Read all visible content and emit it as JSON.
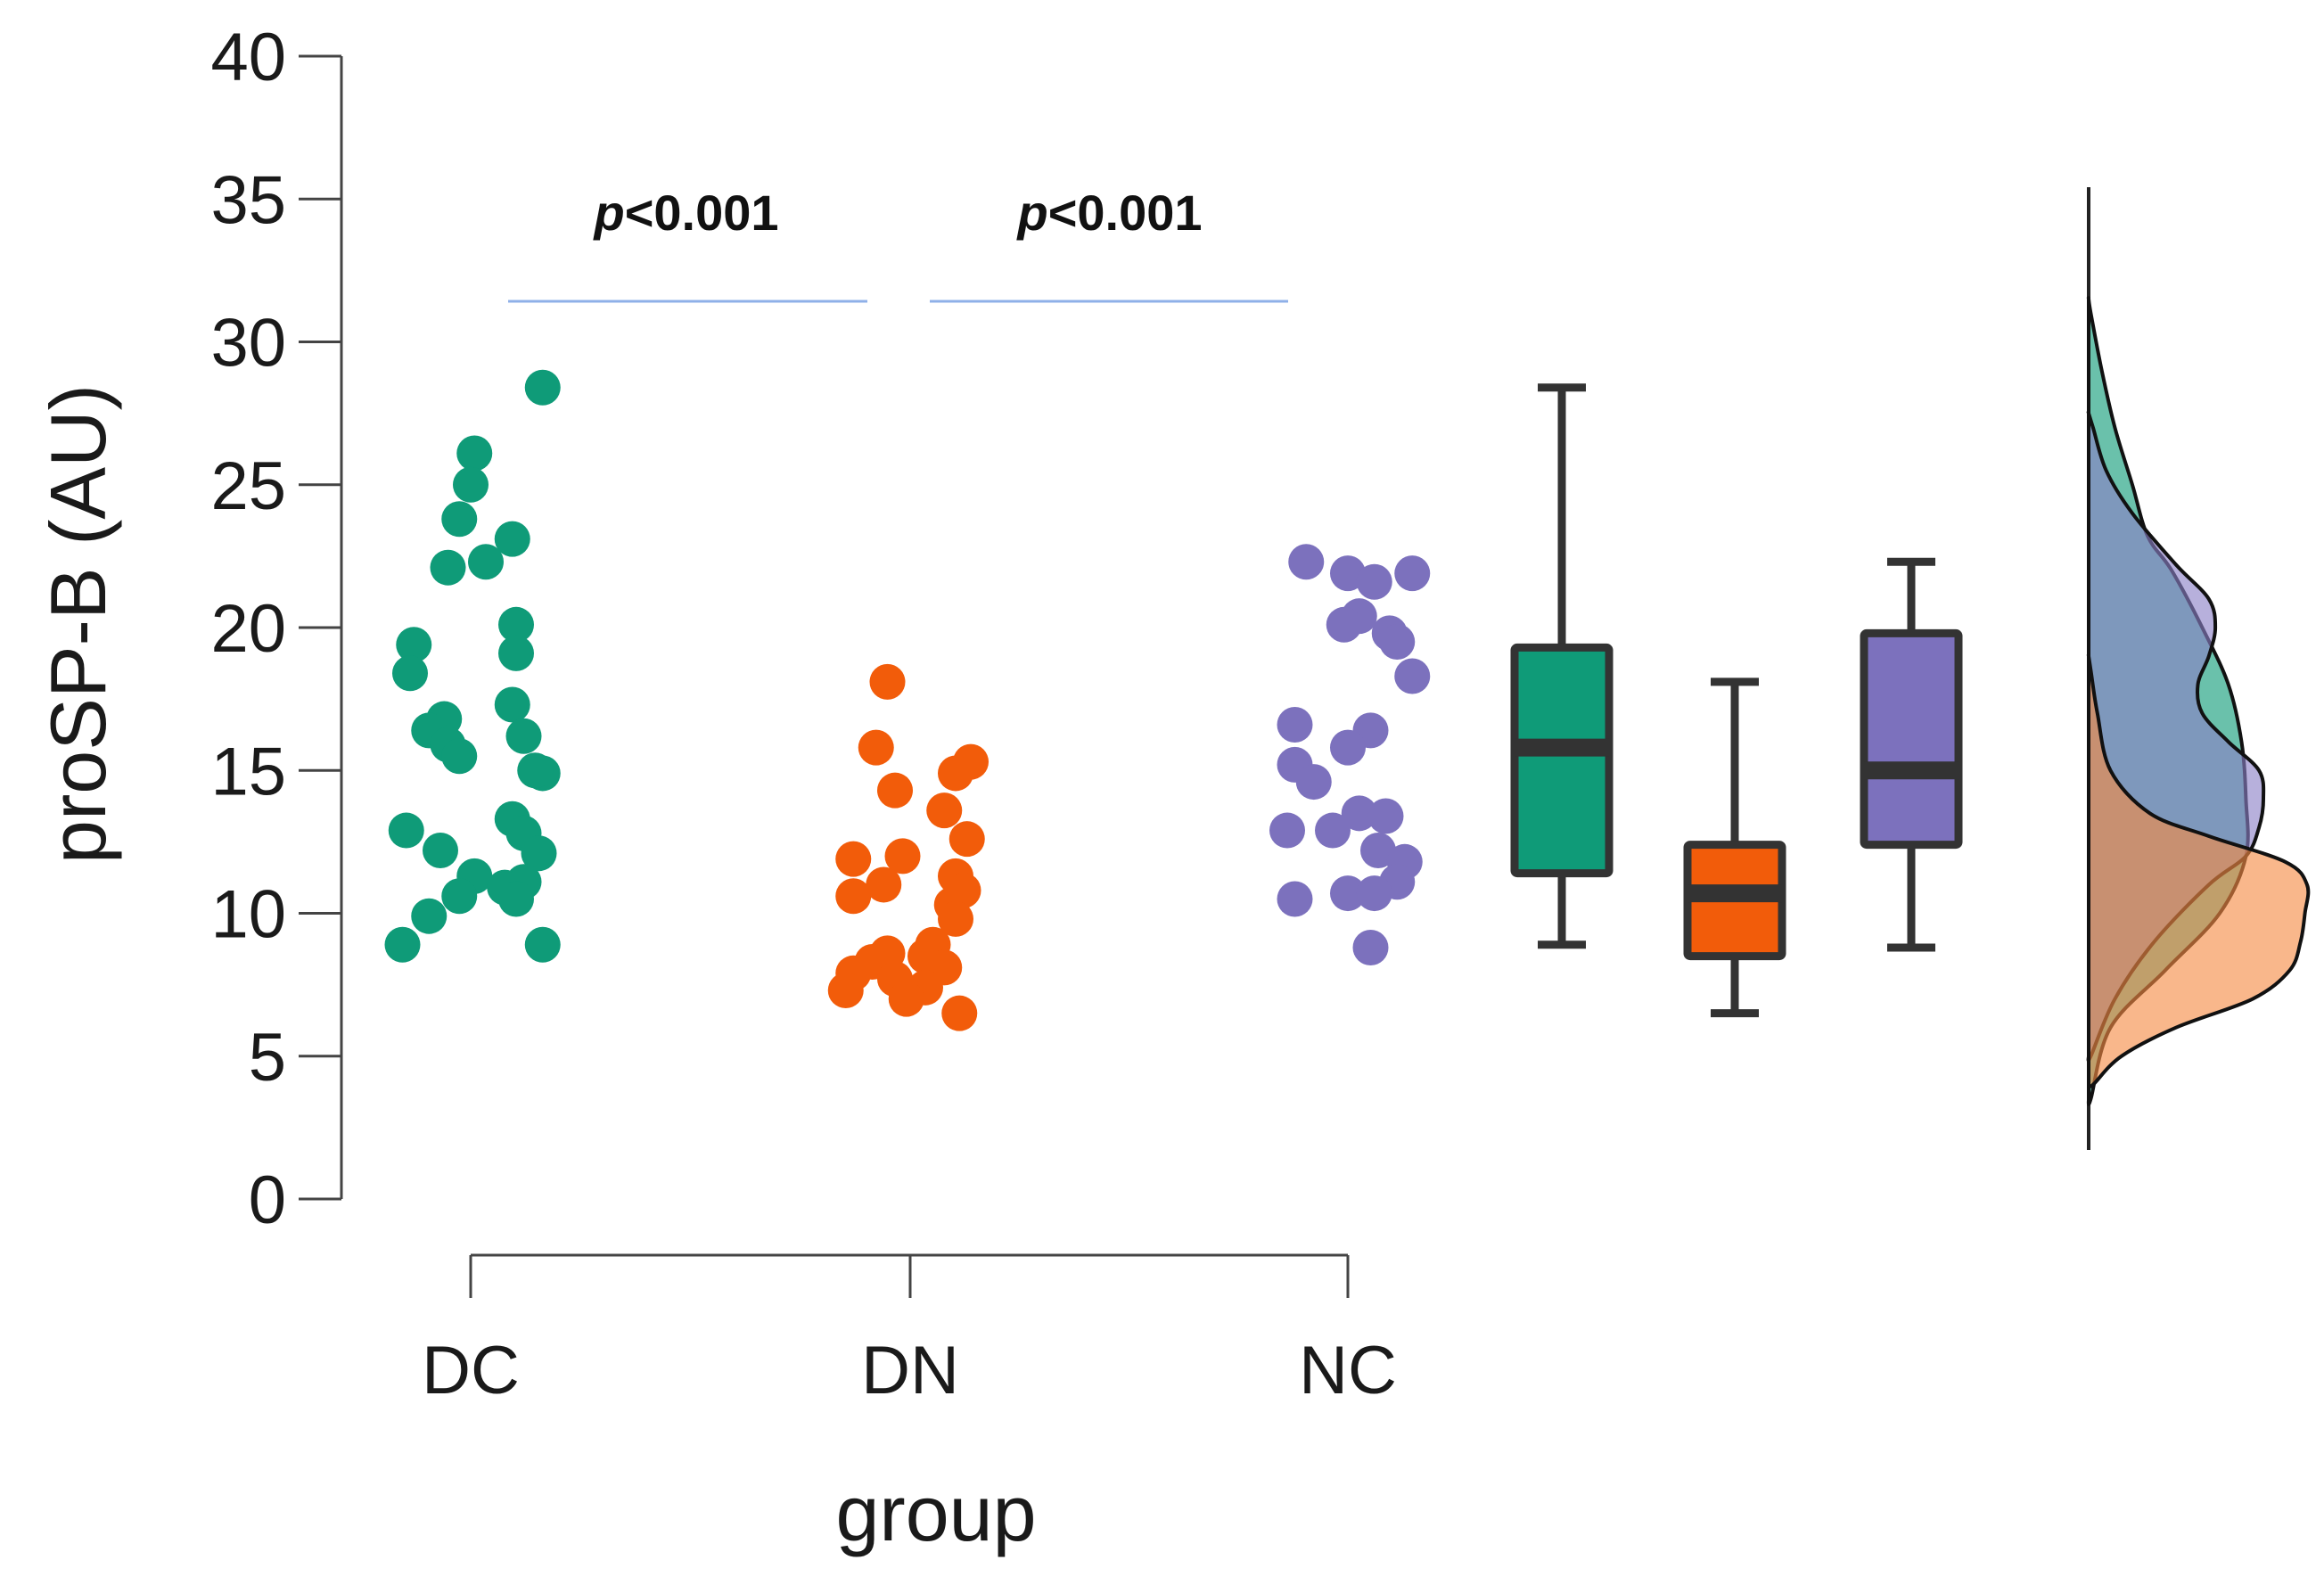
{
  "chart_data": {
    "type": "scatter",
    "subtype": "raincloud",
    "ylabel": "proSP-B (AU)",
    "xlabel": "group",
    "ylim": [
      0,
      40
    ],
    "yticks": [
      0,
      5,
      10,
      15,
      20,
      25,
      30,
      35,
      40
    ],
    "categories": [
      "DC",
      "DN",
      "NC"
    ],
    "annotations": [
      {
        "text": "p<0.001",
        "italic": "p",
        "rest": "<0.001",
        "between": [
          "DC",
          "DN"
        ]
      },
      {
        "text": "p<0.001",
        "italic": "p",
        "rest": "<0.001",
        "between": [
          "DN",
          "NC"
        ]
      }
    ],
    "series": [
      {
        "name": "DC",
        "color": "#0f9b78",
        "points": [
          {
            "jitter": 0.95,
            "y": 28.4
          },
          {
            "jitter": 0.05,
            "y": 26.1
          },
          {
            "jitter": 0.0,
            "y": 25.0
          },
          {
            "jitter": -0.15,
            "y": 23.8
          },
          {
            "jitter": 0.55,
            "y": 23.1
          },
          {
            "jitter": -0.3,
            "y": 22.1
          },
          {
            "jitter": 0.2,
            "y": 22.3
          },
          {
            "jitter": 0.6,
            "y": 20.1
          },
          {
            "jitter": -0.75,
            "y": 19.4
          },
          {
            "jitter": 0.6,
            "y": 19.1
          },
          {
            "jitter": -0.8,
            "y": 18.4
          },
          {
            "jitter": 0.55,
            "y": 17.3
          },
          {
            "jitter": -0.35,
            "y": 16.8
          },
          {
            "jitter": -0.55,
            "y": 16.4
          },
          {
            "jitter": -0.3,
            "y": 15.9
          },
          {
            "jitter": 0.7,
            "y": 16.2
          },
          {
            "jitter": -0.15,
            "y": 15.5
          },
          {
            "jitter": 0.95,
            "y": 14.9
          },
          {
            "jitter": 0.85,
            "y": 15.0
          },
          {
            "jitter": 0.55,
            "y": 13.3
          },
          {
            "jitter": -0.85,
            "y": 12.9
          },
          {
            "jitter": 0.7,
            "y": 12.8
          },
          {
            "jitter": -0.4,
            "y": 12.2
          },
          {
            "jitter": 0.9,
            "y": 12.1
          },
          {
            "jitter": 0.05,
            "y": 11.3
          },
          {
            "jitter": 0.7,
            "y": 11.1
          },
          {
            "jitter": 0.45,
            "y": 10.9
          },
          {
            "jitter": -0.15,
            "y": 10.6
          },
          {
            "jitter": 0.6,
            "y": 10.5
          },
          {
            "jitter": -0.55,
            "y": 9.9
          },
          {
            "jitter": -0.9,
            "y": 8.9
          },
          {
            "jitter": 0.95,
            "y": 8.9
          }
        ]
      },
      {
        "name": "DN",
        "color": "#f25c0a",
        "points": [
          {
            "jitter": -0.3,
            "y": 18.1
          },
          {
            "jitter": -0.45,
            "y": 15.8
          },
          {
            "jitter": 0.8,
            "y": 15.3
          },
          {
            "jitter": 0.6,
            "y": 14.9
          },
          {
            "jitter": -0.2,
            "y": 14.3
          },
          {
            "jitter": 0.45,
            "y": 13.6
          },
          {
            "jitter": 0.75,
            "y": 12.6
          },
          {
            "jitter": -0.1,
            "y": 12.0
          },
          {
            "jitter": -0.75,
            "y": 11.9
          },
          {
            "jitter": 0.6,
            "y": 11.3
          },
          {
            "jitter": -0.35,
            "y": 11.0
          },
          {
            "jitter": 0.7,
            "y": 10.8
          },
          {
            "jitter": -0.75,
            "y": 10.6
          },
          {
            "jitter": 0.55,
            "y": 10.3
          },
          {
            "jitter": 0.6,
            "y": 9.8
          },
          {
            "jitter": 0.3,
            "y": 8.9
          },
          {
            "jitter": -0.3,
            "y": 8.6
          },
          {
            "jitter": 0.2,
            "y": 8.5
          },
          {
            "jitter": -0.5,
            "y": 8.3
          },
          {
            "jitter": 0.45,
            "y": 8.1
          },
          {
            "jitter": -0.75,
            "y": 7.9
          },
          {
            "jitter": -0.2,
            "y": 7.7
          },
          {
            "jitter": 0.2,
            "y": 7.4
          },
          {
            "jitter": -0.85,
            "y": 7.3
          },
          {
            "jitter": -0.05,
            "y": 7.0
          },
          {
            "jitter": 0.65,
            "y": 6.5
          }
        ]
      },
      {
        "name": "NC",
        "color": "#7c71bd",
        "points": [
          {
            "jitter": -0.55,
            "y": 22.3
          },
          {
            "jitter": 0.0,
            "y": 21.9
          },
          {
            "jitter": 0.85,
            "y": 21.9
          },
          {
            "jitter": 0.35,
            "y": 21.6
          },
          {
            "jitter": 0.15,
            "y": 20.4
          },
          {
            "jitter": -0.05,
            "y": 20.1
          },
          {
            "jitter": 0.55,
            "y": 19.8
          },
          {
            "jitter": 0.65,
            "y": 19.5
          },
          {
            "jitter": 0.85,
            "y": 18.3
          },
          {
            "jitter": -0.7,
            "y": 16.6
          },
          {
            "jitter": 0.3,
            "y": 16.4
          },
          {
            "jitter": 0.0,
            "y": 15.8
          },
          {
            "jitter": -0.7,
            "y": 15.2
          },
          {
            "jitter": -0.45,
            "y": 14.6
          },
          {
            "jitter": 0.15,
            "y": 13.5
          },
          {
            "jitter": 0.5,
            "y": 13.4
          },
          {
            "jitter": -0.8,
            "y": 12.9
          },
          {
            "jitter": -0.2,
            "y": 12.9
          },
          {
            "jitter": 0.4,
            "y": 12.2
          },
          {
            "jitter": 0.75,
            "y": 11.8
          },
          {
            "jitter": 0.65,
            "y": 11.1
          },
          {
            "jitter": 0.0,
            "y": 10.7
          },
          {
            "jitter": 0.35,
            "y": 10.7
          },
          {
            "jitter": -0.7,
            "y": 10.5
          },
          {
            "jitter": 0.3,
            "y": 8.8
          }
        ]
      }
    ],
    "boxplots": [
      {
        "name": "DC",
        "color": "#0f9b78",
        "min": 8.9,
        "q1": 11.4,
        "median": 15.8,
        "q3": 19.3,
        "max": 28.4
      },
      {
        "name": "DN",
        "color": "#f25c0a",
        "min": 6.5,
        "q1": 8.5,
        "median": 10.7,
        "q3": 12.4,
        "max": 18.1
      },
      {
        "name": "NC",
        "color": "#7c71bd",
        "min": 8.8,
        "q1": 12.4,
        "median": 15.0,
        "q3": 19.8,
        "max": 22.3
      }
    ],
    "densities": [
      {
        "name": "DC",
        "color": "#0f9b78",
        "profile": [
          [
            3.5,
            0.01
          ],
          [
            6,
            0.1
          ],
          [
            8,
            0.35
          ],
          [
            10,
            0.6
          ],
          [
            12,
            0.72
          ],
          [
            14,
            0.72
          ],
          [
            16,
            0.7
          ],
          [
            18,
            0.64
          ],
          [
            20,
            0.52
          ],
          [
            22,
            0.38
          ],
          [
            23.2,
            0.27
          ],
          [
            25,
            0.2
          ],
          [
            27,
            0.12
          ],
          [
            29,
            0.06
          ],
          [
            31,
            0.01
          ],
          [
            31.5,
            0
          ]
        ]
      },
      {
        "name": "DN",
        "color": "#f58a43",
        "profile": [
          [
            4,
            0.02
          ],
          [
            5,
            0.15
          ],
          [
            6,
            0.4
          ],
          [
            7,
            0.75
          ],
          [
            8,
            0.92
          ],
          [
            9,
            0.97
          ],
          [
            10,
            0.99
          ],
          [
            11,
            1.0
          ],
          [
            11.8,
            0.9
          ],
          [
            12.7,
            0.55
          ],
          [
            13.5,
            0.28
          ],
          [
            15,
            0.1
          ],
          [
            17,
            0.04
          ],
          [
            18.5,
            0.01
          ],
          [
            19,
            0
          ]
        ]
      },
      {
        "name": "NC",
        "color": "#8a7fc6",
        "profile": [
          [
            5,
            0.01
          ],
          [
            7,
            0.12
          ],
          [
            9,
            0.3
          ],
          [
            11,
            0.55
          ],
          [
            12,
            0.72
          ],
          [
            13,
            0.78
          ],
          [
            14,
            0.8
          ],
          [
            15,
            0.78
          ],
          [
            16,
            0.64
          ],
          [
            17,
            0.52
          ],
          [
            18,
            0.5
          ],
          [
            19,
            0.55
          ],
          [
            20,
            0.58
          ],
          [
            21,
            0.55
          ],
          [
            22.2,
            0.4
          ],
          [
            24,
            0.2
          ],
          [
            25.5,
            0.08
          ],
          [
            27,
            0.02
          ],
          [
            27.5,
            0
          ]
        ]
      }
    ]
  }
}
